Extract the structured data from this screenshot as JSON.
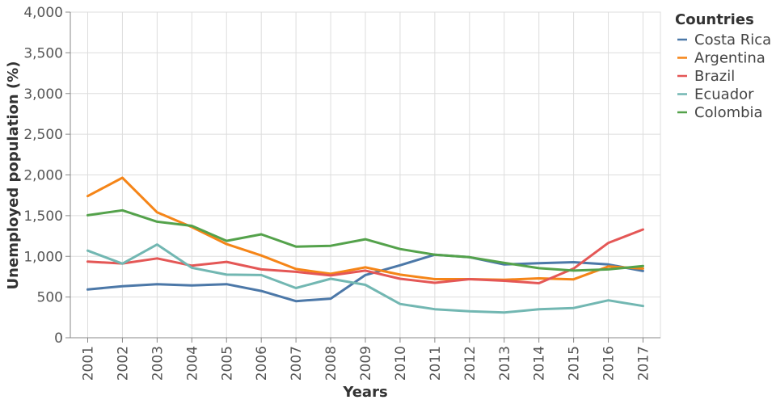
{
  "chart_data": {
    "type": "line",
    "x": [
      2001,
      2002,
      2003,
      2004,
      2005,
      2006,
      2007,
      2008,
      2009,
      2010,
      2011,
      2012,
      2013,
      2014,
      2015,
      2016,
      2017
    ],
    "x_tick_labels": [
      "2001",
      "2002",
      "2003",
      "2004",
      "2005",
      "2006",
      "2007",
      "2008",
      "2009",
      "2010",
      "2011",
      "2012",
      "2013",
      "2014",
      "2015",
      "2016",
      "2017"
    ],
    "y_ticks": [
      0,
      500,
      1000,
      1500,
      2000,
      2500,
      3000,
      3500,
      4000
    ],
    "y_tick_labels": [
      "0",
      "500",
      "1,000",
      "1,500",
      "2,000",
      "2,500",
      "3,000",
      "3,500",
      "4,000"
    ],
    "ylim": [
      0,
      4000
    ],
    "xlabel": "Years",
    "ylabel": "Unemployed population (%)",
    "legend_title": "Countries",
    "legend_position": "right",
    "grid": true,
    "series": [
      {
        "name": "Costa Rica",
        "color": "#4c78a8",
        "values": [
          593,
          633,
          657,
          643,
          658,
          575,
          450,
          480,
          770,
          890,
          1020,
          990,
          900,
          915,
          928,
          900,
          820
        ]
      },
      {
        "name": "Argentina",
        "color": "#f58518",
        "values": [
          1740,
          1965,
          1540,
          1360,
          1150,
          1010,
          845,
          785,
          865,
          775,
          720,
          720,
          712,
          730,
          718,
          875,
          850
        ]
      },
      {
        "name": "Brazil",
        "color": "#e45756",
        "values": [
          935,
          912,
          975,
          885,
          932,
          840,
          810,
          765,
          825,
          725,
          675,
          720,
          700,
          670,
          850,
          1165,
          1330
        ]
      },
      {
        "name": "Ecuador",
        "color": "#72b7b2",
        "values": [
          1070,
          910,
          1145,
          860,
          775,
          770,
          610,
          725,
          650,
          415,
          350,
          325,
          310,
          350,
          365,
          460,
          390
        ]
      },
      {
        "name": "Colombia",
        "color": "#54a24b",
        "values": [
          1505,
          1565,
          1425,
          1375,
          1190,
          1270,
          1120,
          1130,
          1210,
          1090,
          1020,
          990,
          920,
          855,
          825,
          840,
          880
        ]
      }
    ]
  }
}
